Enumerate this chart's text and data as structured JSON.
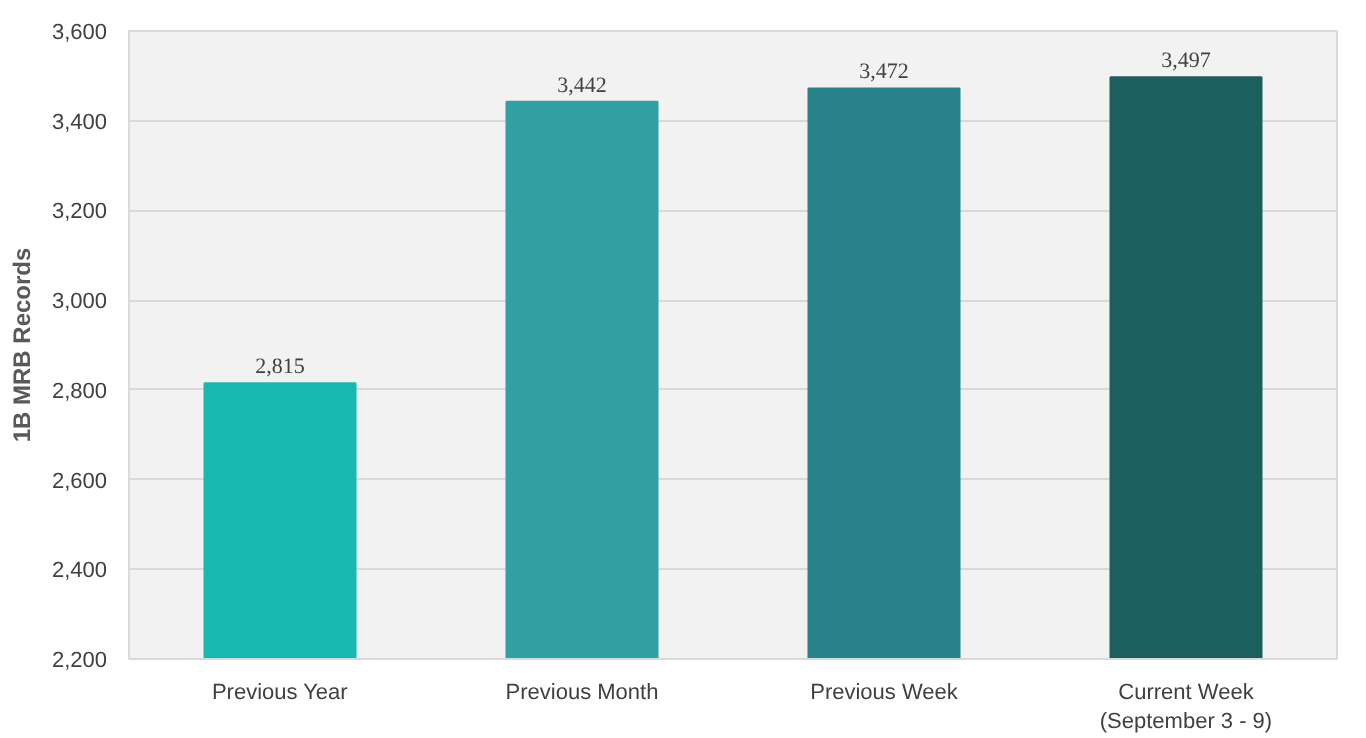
{
  "chart_data": {
    "type": "bar",
    "ylabel": "1B MRB Records",
    "categories": [
      "Previous Year",
      "Previous Month",
      "Previous Week",
      "Current Week\n(September 3 - 9)"
    ],
    "values": [
      2815,
      3442,
      3472,
      3497
    ],
    "colors": [
      "#17b8b0",
      "#31a0a3",
      "#278389",
      "#1b5f5e"
    ],
    "ylim": [
      2200,
      3600
    ],
    "yticks": [
      {
        "value": 2200,
        "label": "2,200"
      },
      {
        "value": 2400,
        "label": "2,400"
      },
      {
        "value": 2600,
        "label": "2,600"
      },
      {
        "value": 2800,
        "label": "2,800"
      },
      {
        "value": 3000,
        "label": "3,000"
      },
      {
        "value": 3200,
        "label": "3,200"
      },
      {
        "value": 3400,
        "label": "3,400"
      },
      {
        "value": 3600,
        "label": "3,600"
      }
    ],
    "value_labels": [
      "2,815",
      "3,442",
      "3,472",
      "3,497"
    ],
    "grid": "y"
  }
}
